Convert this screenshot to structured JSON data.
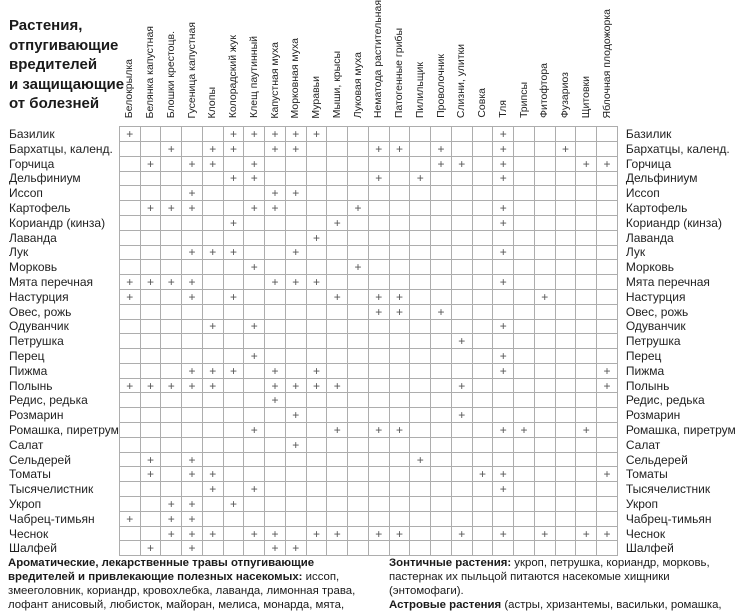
{
  "title": "Растения,\nотпугивающие\nвредителей\nи защищающие\nот болезней",
  "table": {
    "mark_symbol": "+",
    "columns": [
      "Белокрылка",
      "Белянка капустная",
      "Блошки крестоцв.",
      "Гусеница капустная",
      "Клопы",
      "Колорадский жук",
      "Клещ паутинный",
      "Капустная муха",
      "Морковная муха",
      "Муравьи",
      "Мыши, крысы",
      "Луковая муха",
      "Нематода растительная",
      "Патогенные грибы",
      "Пилильщик",
      "Проволочник",
      "Слизни, улитки",
      "Совка",
      "Тля",
      "Трипсы",
      "Фитофтора",
      "Фузариоз",
      "Щитовки",
      "Яблочная плодожорка"
    ],
    "rows": [
      {
        "name": "Базилик",
        "marks": [
          1,
          6,
          7,
          8,
          9,
          10,
          19
        ]
      },
      {
        "name": "Бархатцы, календ.",
        "marks": [
          3,
          5,
          6,
          8,
          9,
          13,
          14,
          16,
          19,
          22
        ]
      },
      {
        "name": "Горчица",
        "marks": [
          2,
          4,
          5,
          7,
          16,
          17,
          19,
          23,
          24
        ]
      },
      {
        "name": "Дельфиниум",
        "marks": [
          6,
          7,
          13,
          15,
          19
        ]
      },
      {
        "name": "Иссоп",
        "marks": [
          4,
          8,
          9
        ]
      },
      {
        "name": "Картофель",
        "marks": [
          2,
          3,
          4,
          7,
          8,
          12,
          19
        ]
      },
      {
        "name": "Кориандр (кинза)",
        "marks": [
          6,
          11,
          19
        ]
      },
      {
        "name": "Лаванда",
        "marks": [
          10
        ]
      },
      {
        "name": "Лук",
        "marks": [
          4,
          5,
          6,
          9,
          19
        ]
      },
      {
        "name": "Морковь",
        "marks": [
          7,
          12
        ]
      },
      {
        "name": "Мята перечная",
        "marks": [
          1,
          2,
          3,
          4,
          8,
          9,
          10,
          19
        ]
      },
      {
        "name": "Настурция",
        "marks": [
          1,
          4,
          6,
          11,
          13,
          14,
          21
        ]
      },
      {
        "name": "Овес, рожь",
        "marks": [
          13,
          14,
          16
        ]
      },
      {
        "name": "Одуванчик",
        "marks": [
          5,
          7,
          19
        ]
      },
      {
        "name": "Петрушка",
        "marks": [
          17
        ]
      },
      {
        "name": "Перец",
        "marks": [
          7,
          19
        ]
      },
      {
        "name": "Пижма",
        "marks": [
          4,
          5,
          6,
          8,
          10,
          19,
          24
        ]
      },
      {
        "name": "Полынь",
        "marks": [
          1,
          2,
          3,
          4,
          5,
          8,
          9,
          10,
          11,
          17,
          24
        ]
      },
      {
        "name": "Редис, редька",
        "marks": [
          8
        ]
      },
      {
        "name": "Розмарин",
        "marks": [
          9,
          17
        ]
      },
      {
        "name": "Ромашка, пиретрум",
        "marks": [
          7,
          11,
          13,
          14,
          19,
          20,
          23
        ]
      },
      {
        "name": "Салат",
        "marks": [
          9
        ]
      },
      {
        "name": "Сельдерей",
        "marks": [
          2,
          4,
          15
        ]
      },
      {
        "name": "Томаты",
        "marks": [
          2,
          4,
          5,
          18,
          19,
          24
        ]
      },
      {
        "name": "Тысячелистник",
        "marks": [
          5,
          7,
          19
        ]
      },
      {
        "name": "Укроп",
        "marks": [
          3,
          4,
          6
        ]
      },
      {
        "name": "Чабрец-тимьян",
        "marks": [
          1,
          3,
          4
        ]
      },
      {
        "name": "Чеснок",
        "marks": [
          3,
          4,
          5,
          7,
          8,
          10,
          11,
          13,
          14,
          17,
          19,
          21,
          23,
          24
        ]
      },
      {
        "name": "Шалфей",
        "marks": [
          2,
          4,
          8,
          9
        ]
      }
    ]
  },
  "footer": {
    "left": {
      "bold": "Ароматические, лекарственные травы отпугивающие вредителей и привлекающие полезных насекомых:",
      "text": " иссоп, змееголовник, кориандр, кровохлебка, лаванда, лимонная трава, лофант анисовый, любисток, майоран, мелиса, монарда, мята, розмарин, ромашка, рута, тимьян, тмин, тысячелистник, фенхель, шалфей, шандра, эхинация, эстрагон (тархун)."
    },
    "right": [
      {
        "bold": "Зонтичные растения:",
        "text": " укроп, петрушка, кориандр, морковь, пастернак их пыльцой питаются насекомые хищники (энтомофаги)."
      },
      {
        "bold": "Астровые растения",
        "text": " (астры, хризантемы, васильки, ромашка, подсолнух, салаты). Не все пыльца для хищников насекомых."
      }
    ]
  },
  "colors": {
    "border": "#adadad",
    "mark": "#555555",
    "text": "#1a1a1a"
  }
}
